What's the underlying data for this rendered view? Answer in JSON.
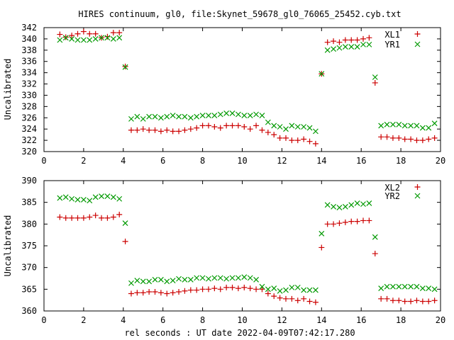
{
  "title": "HIRES continuum, gl0, file:Skynet_59678_gl0_76065_25452.cyb.txt",
  "xlabel": "rel seconds : UT date 2022-04-09T07:42:17.280",
  "colors": {
    "series1": "#cc0000",
    "series2": "#009900"
  },
  "chart_data": [
    {
      "type": "scatter",
      "ylabel": "Uncalibrated",
      "xlim": [
        0,
        20
      ],
      "ylim": [
        320,
        342
      ],
      "xticks": [
        "0",
        "2",
        "4",
        "6",
        "8",
        "10",
        "12",
        "14",
        "16",
        "18",
        "20"
      ],
      "yticks": [
        "320",
        "322",
        "324",
        "326",
        "328",
        "330",
        "332",
        "334",
        "336",
        "338",
        "340",
        "342"
      ],
      "legend_position": "top-right",
      "series": [
        {
          "name": "XL1",
          "marker": "plus",
          "x": [
            0.8,
            1.1,
            1.4,
            1.7,
            2.0,
            2.3,
            2.6,
            2.9,
            3.2,
            3.5,
            3.8,
            4.1,
            4.4,
            4.7,
            5.0,
            5.3,
            5.6,
            5.9,
            6.2,
            6.5,
            6.8,
            7.1,
            7.4,
            7.7,
            8.0,
            8.3,
            8.6,
            8.9,
            9.2,
            9.5,
            9.8,
            10.1,
            10.4,
            10.7,
            11.0,
            11.3,
            11.6,
            11.9,
            12.2,
            12.5,
            12.8,
            13.1,
            13.4,
            13.7,
            14.0,
            14.3,
            14.6,
            14.9,
            15.2,
            15.5,
            15.8,
            16.1,
            16.4,
            16.7,
            17.0,
            17.3,
            17.6,
            17.9,
            18.2,
            18.5,
            18.8,
            19.1,
            19.4,
            19.7
          ],
          "y": [
            340.8,
            340.3,
            340.6,
            340.9,
            341.3,
            340.9,
            340.9,
            340.2,
            340.4,
            341.1,
            341.1,
            335.1,
            323.8,
            323.8,
            324.0,
            323.8,
            323.8,
            323.6,
            323.8,
            323.6,
            323.6,
            323.8,
            324.0,
            324.2,
            324.6,
            324.6,
            324.4,
            324.2,
            324.6,
            324.6,
            324.6,
            324.4,
            324.0,
            324.6,
            323.8,
            323.4,
            323.0,
            322.4,
            322.4,
            322.0,
            322.0,
            322.2,
            321.8,
            321.4,
            333.8,
            339.4,
            339.6,
            339.4,
            339.8,
            339.8,
            339.8,
            340.0,
            340.2,
            332.2,
            322.6,
            322.6,
            322.4,
            322.4,
            322.2,
            322.2,
            322.0,
            322.0,
            322.2,
            322.4
          ]
        },
        {
          "name": "YR1",
          "marker": "cross",
          "x": [
            0.8,
            1.1,
            1.4,
            1.7,
            2.0,
            2.3,
            2.6,
            2.9,
            3.2,
            3.5,
            3.8,
            4.1,
            4.4,
            4.7,
            5.0,
            5.3,
            5.6,
            5.9,
            6.2,
            6.5,
            6.8,
            7.1,
            7.4,
            7.7,
            8.0,
            8.3,
            8.6,
            8.9,
            9.2,
            9.5,
            9.8,
            10.1,
            10.4,
            10.7,
            11.0,
            11.3,
            11.6,
            11.9,
            12.2,
            12.5,
            12.8,
            13.1,
            13.4,
            13.7,
            14.0,
            14.3,
            14.6,
            14.9,
            15.2,
            15.5,
            15.8,
            16.1,
            16.4,
            16.7,
            17.0,
            17.3,
            17.6,
            17.9,
            18.2,
            18.5,
            18.8,
            19.1,
            19.4,
            19.7
          ],
          "y": [
            339.8,
            340.2,
            340.0,
            339.8,
            339.8,
            339.8,
            340.0,
            340.2,
            340.2,
            340.0,
            340.2,
            335.0,
            325.8,
            326.2,
            325.8,
            326.2,
            326.2,
            326.0,
            326.2,
            326.4,
            326.2,
            326.2,
            326.0,
            326.2,
            326.4,
            326.4,
            326.4,
            326.6,
            326.8,
            326.8,
            326.6,
            326.4,
            326.4,
            326.6,
            326.4,
            325.2,
            324.6,
            324.4,
            324.0,
            324.6,
            324.4,
            324.4,
            324.2,
            323.6,
            333.8,
            338.0,
            338.2,
            338.4,
            338.6,
            338.6,
            338.6,
            339.0,
            339.0,
            333.2,
            324.6,
            324.8,
            324.8,
            324.8,
            324.6,
            324.6,
            324.6,
            324.2,
            324.2,
            325.0
          ]
        }
      ]
    },
    {
      "type": "scatter",
      "ylabel": "Uncalibrated",
      "xlim": [
        0,
        20
      ],
      "ylim": [
        360,
        390
      ],
      "xticks": [
        "0",
        "2",
        "4",
        "6",
        "8",
        "10",
        "12",
        "14",
        "16",
        "18",
        "20"
      ],
      "yticks": [
        "360",
        "365",
        "370",
        "375",
        "380",
        "385",
        "390"
      ],
      "legend_position": "top-right",
      "series": [
        {
          "name": "XL2",
          "marker": "plus",
          "x": [
            0.8,
            1.1,
            1.4,
            1.7,
            2.0,
            2.3,
            2.6,
            2.9,
            3.2,
            3.5,
            3.8,
            4.1,
            4.4,
            4.7,
            5.0,
            5.3,
            5.6,
            5.9,
            6.2,
            6.5,
            6.8,
            7.1,
            7.4,
            7.7,
            8.0,
            8.3,
            8.6,
            8.9,
            9.2,
            9.5,
            9.8,
            10.1,
            10.4,
            10.7,
            11.0,
            11.3,
            11.6,
            11.9,
            12.2,
            12.5,
            12.8,
            13.1,
            13.4,
            13.7,
            14.0,
            14.3,
            14.6,
            14.9,
            15.2,
            15.5,
            15.8,
            16.1,
            16.4,
            16.7,
            17.0,
            17.3,
            17.6,
            17.9,
            18.2,
            18.5,
            18.8,
            19.1,
            19.4,
            19.7
          ],
          "y": [
            381.6,
            381.4,
            381.4,
            381.4,
            381.4,
            381.6,
            382.0,
            381.4,
            381.4,
            381.6,
            382.2,
            376.0,
            364.0,
            364.2,
            364.2,
            364.4,
            364.4,
            364.2,
            364.0,
            364.2,
            364.4,
            364.6,
            364.8,
            364.8,
            365.0,
            365.0,
            365.2,
            365.0,
            365.4,
            365.4,
            365.2,
            365.4,
            365.2,
            365.0,
            365.0,
            364.0,
            363.4,
            363.0,
            362.8,
            362.8,
            362.4,
            362.8,
            362.2,
            362.0,
            374.6,
            380.0,
            380.0,
            380.2,
            380.4,
            380.6,
            380.6,
            380.8,
            380.8,
            373.2,
            362.8,
            362.8,
            362.4,
            362.4,
            362.2,
            362.2,
            362.4,
            362.2,
            362.2,
            362.4
          ]
        },
        {
          "name": "YR2",
          "marker": "cross",
          "x": [
            0.8,
            1.1,
            1.4,
            1.7,
            2.0,
            2.3,
            2.6,
            2.9,
            3.2,
            3.5,
            3.8,
            4.1,
            4.4,
            4.7,
            5.0,
            5.3,
            5.6,
            5.9,
            6.2,
            6.5,
            6.8,
            7.1,
            7.4,
            7.7,
            8.0,
            8.3,
            8.6,
            8.9,
            9.2,
            9.5,
            9.8,
            10.1,
            10.4,
            10.7,
            11.0,
            11.3,
            11.6,
            11.9,
            12.2,
            12.5,
            12.8,
            13.1,
            13.4,
            13.7,
            14.0,
            14.3,
            14.6,
            14.9,
            15.2,
            15.5,
            15.8,
            16.1,
            16.4,
            16.7,
            17.0,
            17.3,
            17.6,
            17.9,
            18.2,
            18.5,
            18.8,
            19.1,
            19.4,
            19.7
          ],
          "y": [
            386.0,
            386.2,
            385.8,
            385.6,
            385.6,
            385.4,
            386.2,
            386.4,
            386.4,
            386.2,
            385.8,
            380.2,
            366.4,
            367.0,
            366.8,
            366.8,
            367.2,
            367.2,
            366.8,
            367.0,
            367.4,
            367.2,
            367.2,
            367.6,
            367.6,
            367.4,
            367.6,
            367.6,
            367.4,
            367.6,
            367.6,
            367.8,
            367.6,
            367.2,
            365.6,
            365.0,
            365.2,
            364.6,
            364.8,
            365.4,
            365.4,
            364.8,
            364.8,
            364.8,
            377.8,
            384.4,
            384.0,
            383.8,
            384.0,
            384.4,
            384.8,
            384.6,
            384.8,
            377.0,
            365.2,
            365.6,
            365.6,
            365.6,
            365.6,
            365.6,
            365.6,
            365.2,
            365.2,
            365.0
          ]
        }
      ]
    }
  ]
}
